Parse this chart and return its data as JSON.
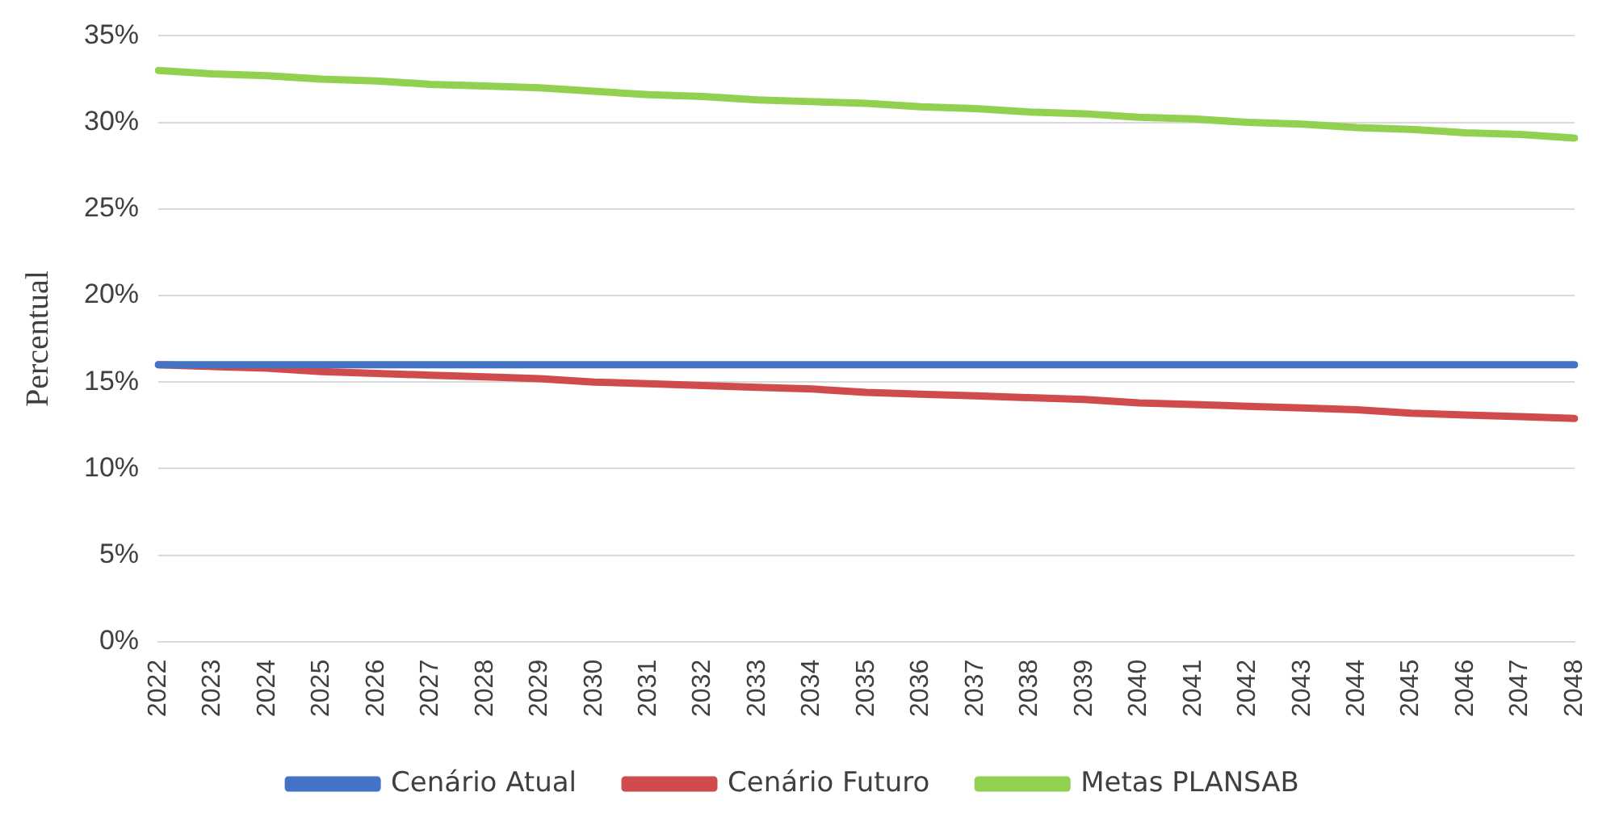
{
  "chart_data": {
    "type": "line",
    "ylabel": "Percentual",
    "categories": [
      "2022",
      "2023",
      "2024",
      "2025",
      "2026",
      "2027",
      "2028",
      "2029",
      "2030",
      "2031",
      "2032",
      "2033",
      "2034",
      "2035",
      "2036",
      "2037",
      "2038",
      "2039",
      "2040",
      "2041",
      "2042",
      "2043",
      "2044",
      "2045",
      "2046",
      "2047",
      "2048"
    ],
    "series": [
      {
        "name": "Cenário Atual",
        "color": "#4472c4",
        "values": [
          16,
          16,
          16,
          16,
          16,
          16,
          16,
          16,
          16,
          16,
          16,
          16,
          16,
          16,
          16,
          16,
          16,
          16,
          16,
          16,
          16,
          16,
          16,
          16,
          16,
          16,
          16
        ]
      },
      {
        "name": "Cenário Futuro",
        "color": "#d04b4b",
        "values": [
          16.0,
          15.9,
          15.8,
          15.6,
          15.5,
          15.4,
          15.3,
          15.2,
          15.0,
          14.9,
          14.8,
          14.7,
          14.6,
          14.4,
          14.3,
          14.2,
          14.1,
          14.0,
          13.8,
          13.7,
          13.6,
          13.5,
          13.4,
          13.2,
          13.1,
          13.0,
          12.9
        ]
      },
      {
        "name": "Metas PLANSAB",
        "color": "#92d050",
        "values": [
          33.0,
          32.8,
          32.7,
          32.5,
          32.4,
          32.2,
          32.1,
          32.0,
          31.8,
          31.6,
          31.5,
          31.3,
          31.2,
          31.1,
          30.9,
          30.8,
          30.6,
          30.5,
          30.3,
          30.2,
          30.0,
          29.9,
          29.7,
          29.6,
          29.4,
          29.3,
          29.1
        ]
      }
    ],
    "ylim": [
      0,
      35
    ],
    "yticks": [
      {
        "value": 0,
        "label": "0%"
      },
      {
        "value": 5,
        "label": "5%"
      },
      {
        "value": 10,
        "label": "10%"
      },
      {
        "value": 15,
        "label": "15%"
      },
      {
        "value": 20,
        "label": "20%"
      },
      {
        "value": 25,
        "label": "25%"
      },
      {
        "value": 30,
        "label": "30%"
      },
      {
        "value": 35,
        "label": "35%"
      }
    ],
    "grid": "y",
    "legend": "bottom",
    "marker": "none",
    "line_style": "solid"
  }
}
